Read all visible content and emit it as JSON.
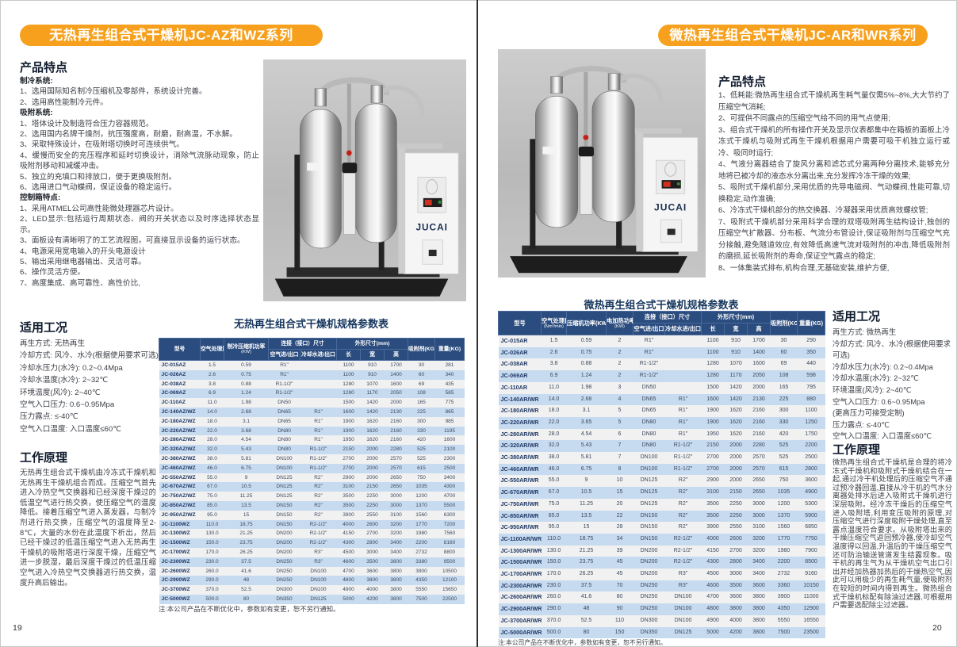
{
  "brand": "JUCAI",
  "left_page": {
    "title": "无热再生组合式干燥机JC-AZ和WZ系列",
    "page_number": "19",
    "features": {
      "heading": "产品特点",
      "sections": [
        {
          "subheading": "制冷系统:",
          "items": [
            "1、选用国际知名制冷压缩机及零部件，系统设计完善。",
            "2、选用高性能制冷元件。"
          ]
        },
        {
          "subheading": "吸附系统:",
          "items": [
            "1、塔体设计及制造符合压力容器规范。",
            "2、选用国内名牌干燥剂，抗压强度高，耐磨，耐高温，不水解。",
            "3、采取特殊设计，在吸附塔切换时可连续供气。",
            "4、缓慢而安全的充压程序和延时切换设计，消除气流脉动现象，防止吸附剂移动和减缓冲击。",
            "5、独立的充填口和排放口，便于更换吸附剂。",
            "6、选用进口气动蝶阀，保证设备的稳定运行。"
          ]
        },
        {
          "subheading": "控制箱特点:",
          "items": [
            "1、采用ATMEL公司高性能微处理器芯片设计。",
            "2、LED显示:包括运行周期状态、阀的开关状态以及时序选择状态显示。",
            "3、面板设有清晰明了的工艺流程图，可直接显示设备的运行状态。",
            "4、电源采用宽电输入的开头电源设计",
            "5、输出采用继电器输出、灵活可靠。",
            "6、操作灵活方便。",
            "7、高度集成、高可靠性、高性价比,"
          ]
        }
      ]
    },
    "conditions": {
      "heading": "适用工况",
      "items": [
        "再生方式: 无热再生",
        "冷却方式: 风冷、水冷(根据使用要求可选)",
        "冷却水压力(水冷): 0.2~0.4Mpa",
        "冷却水温度(水冷): 2~32℃",
        "环境温度(风冷): 2~40℃",
        "空气入口压力: 0.6~0.95Mpa",
        "压力露点: ≤-40℃",
        "空气入口温度: 入口温度≤60℃"
      ]
    },
    "principle": {
      "heading": "工作原理",
      "text": "无热再生组合式干燥机由冷冻式干燥机和无热再生干燥机组合而成。压缩空气首先进入冷热空气交换器和已经深度干燥过的低温空气进行热交换，使压缩空气的温度降低。接着压缩空气进入蒸发器，与制冷剂进行热交换，压缩空气的温度降至2-8℃，大量的水份在此温度下析出，然后已经干燥过的低温压缩空气进入无热再生干燥机的吸附塔进行深度干燥，压缩空气进一步脱湿，最后深度干燥过的低温压缩空气进入冷热空气交换器进行热交换，温度升高后输出。"
    },
    "table": {
      "title": "无热再生组合式干燥机规格参数表",
      "header_row1": [
        {
          "label": "型号",
          "rowspan": 2
        },
        {
          "label": "空气处理量",
          "rowspan": 2
        },
        {
          "label": "制冷压缩机功率",
          "sub": "(KW)",
          "rowspan": 2
        },
        {
          "label": "连接（接口）尺寸",
          "colspan": 2
        },
        {
          "label": "外形尺寸(mm)",
          "colspan": 3
        },
        {
          "label": "吸附剂(KG)",
          "rowspan": 2
        },
        {
          "label": "重量(KG)",
          "rowspan": 2
        }
      ],
      "header_row2": [
        "空气进/出口",
        "冷却水进/出口",
        "长",
        "宽",
        "高"
      ],
      "rows": [
        [
          "JC-015AZ",
          "1.5",
          "0.59",
          "R1\"",
          "",
          "1100",
          "910",
          "1700",
          "30",
          "281"
        ],
        [
          "JC-026AZ",
          "2.6",
          "0.75",
          "R1\"",
          "",
          "1100",
          "910",
          "1400",
          "60",
          "340"
        ],
        [
          "JC-038AZ",
          "3.8",
          "0.88",
          "R1-1/2\"",
          "",
          "1280",
          "1070",
          "1600",
          "69",
          "435"
        ],
        [
          "JC-069AZ",
          "6.9",
          "1.24",
          "R1-1/2\"",
          "",
          "1280",
          "1170",
          "2050",
          "108",
          "585"
        ],
        [
          "JC-110AZ",
          "11.0",
          "1.98",
          "DN50",
          "",
          "1500",
          "1420",
          "2000",
          "165",
          "775"
        ],
        [
          "JC-140AZ/WZ",
          "14.0",
          "2.68",
          "DN65",
          "R1\"",
          "1600",
          "1420",
          "2130",
          "225",
          "865"
        ],
        [
          "JC-180AZ/WZ",
          "18.0",
          "3.1",
          "DN65",
          "R1\"",
          "1900",
          "1620",
          "2160",
          "300",
          "985"
        ],
        [
          "JC-220AZ/WZ",
          "22.0",
          "3.68",
          "DN80",
          "R1\"",
          "1900",
          "1620",
          "2160",
          "330",
          "1195"
        ],
        [
          "JC-280AZ/WZ",
          "28.0",
          "4.54",
          "DN80",
          "R1\"",
          "1950",
          "1620",
          "2160",
          "420",
          "1600"
        ],
        [
          "JC-320AZ/WZ",
          "32.0",
          "5.43",
          "DN80",
          "R1-1/2\"",
          "2150",
          "2000",
          "2280",
          "525",
          "2100"
        ],
        [
          "JC-380AZ/WZ",
          "38.0",
          "5.81",
          "DN100",
          "R1-1/2\"",
          "2700",
          "2000",
          "2570",
          "525",
          "2300"
        ],
        [
          "JC-460AZ/WZ",
          "46.0",
          "6.75",
          "DN100",
          "R1-1/2\"",
          "2700",
          "2000",
          "2570",
          "615",
          "2500"
        ],
        [
          "JC-550AZ/WZ",
          "55.0",
          "9",
          "DN125",
          "R2\"",
          "2900",
          "2000",
          "2650",
          "750",
          "3400"
        ],
        [
          "JC-670AZ/WZ",
          "67.0",
          "10.5",
          "DN125",
          "R2\"",
          "3100",
          "2150",
          "2650",
          "1035",
          "4300"
        ],
        [
          "JC-750AZ/WZ",
          "75.0",
          "11.25",
          "DN125",
          "R2\"",
          "3500",
          "2250",
          "3000",
          "1200",
          "4700"
        ],
        [
          "JC-850AZ/WZ",
          "85.0",
          "13.5",
          "DN150",
          "R2\"",
          "3500",
          "2250",
          "3000",
          "1370",
          "5500"
        ],
        [
          "JC-950AZ/WZ",
          "95.0",
          "15",
          "DN150",
          "R2\"",
          "3900",
          "2550",
          "3100",
          "1560",
          "6300"
        ],
        [
          "JC-1100WZ",
          "110.0",
          "18.75",
          "DN150",
          "R2-1/2\"",
          "4000",
          "2600",
          "3200",
          "1770",
          "7200"
        ],
        [
          "JC-1300WZ",
          "130.0",
          "21.25",
          "DN200",
          "R2-1/2\"",
          "4150",
          "2700",
          "3200",
          "1980",
          "7560"
        ],
        [
          "JC-1500WZ",
          "150.0",
          "23.75",
          "DN200",
          "R2-1/2\"",
          "4300",
          "2800",
          "3400",
          "2200",
          "8160"
        ],
        [
          "JC-1700WZ",
          "170.0",
          "26.25",
          "DN200",
          "R3\"",
          "4500",
          "3000",
          "3400",
          "2732",
          "8800"
        ],
        [
          "JC-2300WZ",
          "230.0",
          "37.5",
          "DN250",
          "R3\"",
          "4600",
          "3500",
          "3800",
          "3380",
          "9500"
        ],
        [
          "JC-2600WZ",
          "260.0",
          "41.6",
          "DN250",
          "DN100",
          "4700",
          "3600",
          "3800",
          "3900",
          "10500"
        ],
        [
          "JC-2900WZ",
          "290.0",
          "48",
          "DN250",
          "DN100",
          "4800",
          "3800",
          "3800",
          "4350",
          "12100"
        ],
        [
          "JC-3700WZ",
          "370.0",
          "52.5",
          "DN300",
          "DN100",
          "4900",
          "4000",
          "3800",
          "5550",
          "15650"
        ],
        [
          "JC-5000WZ",
          "500.0",
          "80",
          "DN350",
          "DN125",
          "5000",
          "4200",
          "3800",
          "7500",
          "22500"
        ]
      ],
      "note": "注:本公司产品在不断优化中，参数如有变更，恕不另行通知。"
    }
  },
  "right_page": {
    "title": "微热再生组合式干燥机JC-AR和WR系列",
    "page_number": "20",
    "features": {
      "heading": "产品特点",
      "sections": [
        {
          "subheading": "",
          "items": [
            "1、低耗能:微热再生组合式干燥机再生耗气量仅需5%~8%,大大节约了压缩空气消耗;",
            "2、可提供不同露点的压缩空气给不同的用气点使用;",
            "3、组合式干燥机的所有操作开关及显示仪表都集中在箱板的面板上冷冻式干燥机与吸附式再生干燥机根据用户需要可吸干机独立运行或冷、吸同时运行;",
            "4、气液分离器结合了旋风分离和滤芯式分离两种分离技术,能够充分地将已被冷却的液态水分离出来,充分发挥冷冻干燥的效果;",
            "5、吸附式干燥机部分,采用优质的先导电磁阀、气动蝶阀,性能可靠,切换稳定,动作准确;",
            "6、冷冻式干燥机部分的热交换器、冷凝器采用优质高效螺纹管;",
            "7、吸附式干燥机部分采用科学合理的双塔吸附再生结构设计,独创的压缩空气扩散器、分布板、气流分布管设计,保证吸附剂与压缩空气充分接触,避免隧道效应,有效降低高速气流对吸附剂的冲击,降低吸附剂的磨损,延长吸附剂的寿命,保证空气露点的稳定;",
            "8、一体集装式排布,机构合理,无基础安装,维护方便,"
          ]
        }
      ]
    },
    "conditions": {
      "heading": "适用工况",
      "items": [
        "再生方式: 微热再生",
        "冷却方式: 风冷、水冷(根据使用要求可选)",
        "冷却水压力(水冷): 0.2~0.4Mpa",
        "冷却水温度(水冷): 2~32℃",
        "环境温度(风冷): 2~40℃",
        "空气入口压力: 0.6~0.95Mpa",
        "(更高压力可接受定制)",
        "压力露点: ≤-40℃",
        "空气入口温度: 入口温度≤60℃"
      ]
    },
    "principle": {
      "heading": "工作原理",
      "text": "微热再生组合式干燥机是合理的将冷冻式干燥机和吸附式干燥机结合在一起,通过冷干机处理后的压缩空气不通过预冷器回温,直接从冷干机的气水分离器处排水后进入吸附式干燥机进行深层吸附。经冷冻干燥后的压缩空气进入吸附塔,利用变压吸附的原理,对压缩空气进行深度吸附干燥处理,直至露点温度符合要求。从吸附塔出来的干燥压缩空气返回预冷器,使冷却空气温度得以回温,升温后的干燥压缩空气还可防治输送管道发生结露现象。吸干机的再生气为从干燥机空气出口引出并经加热器加热后的干燥热空气,因此可以用极少的再生耗气量,使吸附剂在较短的时间内得到再生。微热组合式干燥机标配有除油过滤器,可根据用户需要选配除尘过滤器。"
    },
    "table": {
      "title": "微热再生组合式干燥机规格参数表",
      "header_row1": [
        {
          "label": "型号",
          "rowspan": 2
        },
        {
          "label": "空气处理量",
          "sub": "(Nm³/min)",
          "rowspan": 2
        },
        {
          "label": "压缩机功率(KW)",
          "rowspan": 2
        },
        {
          "label": "电加热功率",
          "sub": "(KW)",
          "rowspan": 2
        },
        {
          "label": "连接（接口）尺寸",
          "colspan": 2
        },
        {
          "label": "外形尺寸(mm)",
          "colspan": 3
        },
        {
          "label": "吸附剂(KG)",
          "rowspan": 2
        },
        {
          "label": "重量(KG)",
          "rowspan": 2
        }
      ],
      "header_row2": [
        "空气进/出口",
        "冷却水进/出口",
        "长",
        "宽",
        "高"
      ],
      "rows": [
        [
          "JC-015AR",
          "1.5",
          "0.59",
          "2",
          "R1\"",
          "",
          "1100",
          "910",
          "1700",
          "30",
          "290"
        ],
        [
          "JC-026AR",
          "2.6",
          "0.75",
          "2",
          "R1\"",
          "",
          "1100",
          "910",
          "1400",
          "60",
          "350"
        ],
        [
          "JC-038AR",
          "3.8",
          "0.88",
          "2",
          "R1-1/2\"",
          "",
          "1280",
          "1070",
          "1600",
          "69",
          "440"
        ],
        [
          "JC-069AR",
          "6.9",
          "1.24",
          "2",
          "R1-1/2\"",
          "",
          "1280",
          "1170",
          "2050",
          "108",
          "598"
        ],
        [
          "JC-110AR",
          "11.0",
          "1.98",
          "3",
          "DN50",
          "",
          "1500",
          "1420",
          "2000",
          "165",
          "795"
        ],
        [
          "JC-140AR/WR",
          "14.0",
          "2.68",
          "4",
          "DN65",
          "R1\"",
          "1600",
          "1420",
          "2130",
          "225",
          "880"
        ],
        [
          "JC-180AR/WR",
          "18.0",
          "3.1",
          "5",
          "DN65",
          "R1\"",
          "1900",
          "1620",
          "2160",
          "300",
          "1100"
        ],
        [
          "JC-220AR/WR",
          "22.0",
          "3.65",
          "5",
          "DN80",
          "R1\"",
          "1900",
          "1620",
          "2160",
          "330",
          "1250"
        ],
        [
          "JC-280AR/WR",
          "28.0",
          "4.54",
          "6",
          "DN80",
          "R1\"",
          "1950",
          "1620",
          "2160",
          "420",
          "1750"
        ],
        [
          "JC-320AR/WR",
          "32.0",
          "5.43",
          "7",
          "DN80",
          "R1-1/2\"",
          "2150",
          "2000",
          "2280",
          "525",
          "2200"
        ],
        [
          "JC-380AR/WR",
          "38.0",
          "5.81",
          "7",
          "DN100",
          "R1-1/2\"",
          "2700",
          "2000",
          "2570",
          "525",
          "2500"
        ],
        [
          "JC-460AR/WR",
          "46.0",
          "6.75",
          "8",
          "DN100",
          "R1-1/2\"",
          "2700",
          "2000",
          "2570",
          "615",
          "2800"
        ],
        [
          "JC-550AR/WR",
          "55.0",
          "9",
          "10",
          "DN125",
          "R2\"",
          "2900",
          "2000",
          "2650",
          "750",
          "3600"
        ],
        [
          "JC-670AR/WR",
          "67.0",
          "10.5",
          "15",
          "DN125",
          "R2\"",
          "3100",
          "2150",
          "2650",
          "1035",
          "4900"
        ],
        [
          "JC-750AR/WR",
          "75.0",
          "11.25",
          "20",
          "DN125",
          "R2\"",
          "3500",
          "2250",
          "3000",
          "1200",
          "5300"
        ],
        [
          "JC-850AR/WR",
          "85.0",
          "13.5",
          "22",
          "DN150",
          "R2\"",
          "3500",
          "2250",
          "3000",
          "1370",
          "5900"
        ],
        [
          "JC-950AR/WR",
          "95.0",
          "15",
          "28",
          "DN150",
          "R2\"",
          "3900",
          "2550",
          "3100",
          "1560",
          "6850"
        ],
        [
          "JC-1100AR/WR",
          "110.0",
          "18.75",
          "34",
          "DN150",
          "R2-1/2\"",
          "4000",
          "2600",
          "3200",
          "1770",
          "7750"
        ],
        [
          "JC-1300AR/WR",
          "130.0",
          "21.25",
          "39",
          "DN200",
          "R2-1/2\"",
          "4150",
          "2700",
          "3200",
          "1980",
          "7900"
        ],
        [
          "JC-1500AR/WR",
          "150.0",
          "23.75",
          "45",
          "DN200",
          "R2-1/2\"",
          "4300",
          "2800",
          "3400",
          "2200",
          "8500"
        ],
        [
          "JC-1700AR/WR",
          "170.0",
          "26.25",
          "45",
          "DN200",
          "R3\"",
          "4500",
          "3000",
          "3400",
          "2732",
          "9160"
        ],
        [
          "JC-2300AR/WR",
          "230.0",
          "37.5",
          "70",
          "DN250",
          "R3\"",
          "4600",
          "3500",
          "3600",
          "3360",
          "10150"
        ],
        [
          "JC-2600AR/WR",
          "260.0",
          "41.6",
          "80",
          "DN250",
          "DN100",
          "4700",
          "3600",
          "3800",
          "3900",
          "11000"
        ],
        [
          "JC-2900AR/WR",
          "290.0",
          "48",
          "90",
          "DN250",
          "DN100",
          "4800",
          "3800",
          "3800",
          "4350",
          "12900"
        ],
        [
          "JC-3700AR/WR",
          "370.0",
          "52.5",
          "110",
          "DN300",
          "DN100",
          "4900",
          "4000",
          "3800",
          "5550",
          "16550"
        ],
        [
          "JC-5000AR/WR",
          "500.0",
          "80",
          "150",
          "DN350",
          "DN125",
          "5000",
          "4200",
          "3800",
          "7500",
          "23500"
        ]
      ],
      "note": "注:本公司产品在不断优化中，参数如有变更，恕不另行通知。"
    }
  },
  "colors": {
    "accent_orange": "#F7A01D",
    "table_header_navy": "#2B4C7E",
    "row_blue": "#C6DAF0",
    "model_navy": "#1F3864"
  }
}
